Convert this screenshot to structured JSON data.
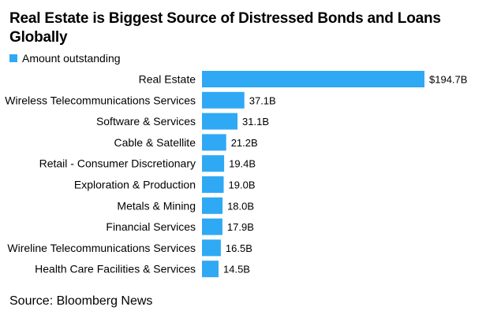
{
  "chart_data": {
    "type": "bar",
    "orientation": "horizontal",
    "title": "Real Estate is Biggest Source of Distressed Bonds and Loans Globally",
    "legend": {
      "placement": "top-left",
      "entries": [
        "Amount outstanding"
      ]
    },
    "categories": [
      "Real Estate",
      "Wireless Telecommunications Services",
      "Software & Services",
      "Cable & Satellite",
      "Retail - Consumer Discretionary",
      "Exploration & Production",
      "Metals & Mining",
      "Financial Services",
      "Wireline Telecommunications Services",
      "Health Care Facilities & Services"
    ],
    "series": [
      {
        "name": "Amount outstanding",
        "values": [
          194.7,
          37.1,
          31.1,
          21.2,
          19.4,
          19.0,
          18.0,
          17.9,
          16.5,
          14.5
        ],
        "labels": [
          "$194.7B",
          "37.1B",
          "31.1B",
          "21.2B",
          "19.4B",
          "19.0B",
          "18.0B",
          "17.9B",
          "16.5B",
          "14.5B"
        ],
        "color": "#2fa9f4"
      }
    ],
    "xlim": [
      0,
      194.7
    ],
    "grid": false,
    "source": "Source: Bloomberg News"
  }
}
